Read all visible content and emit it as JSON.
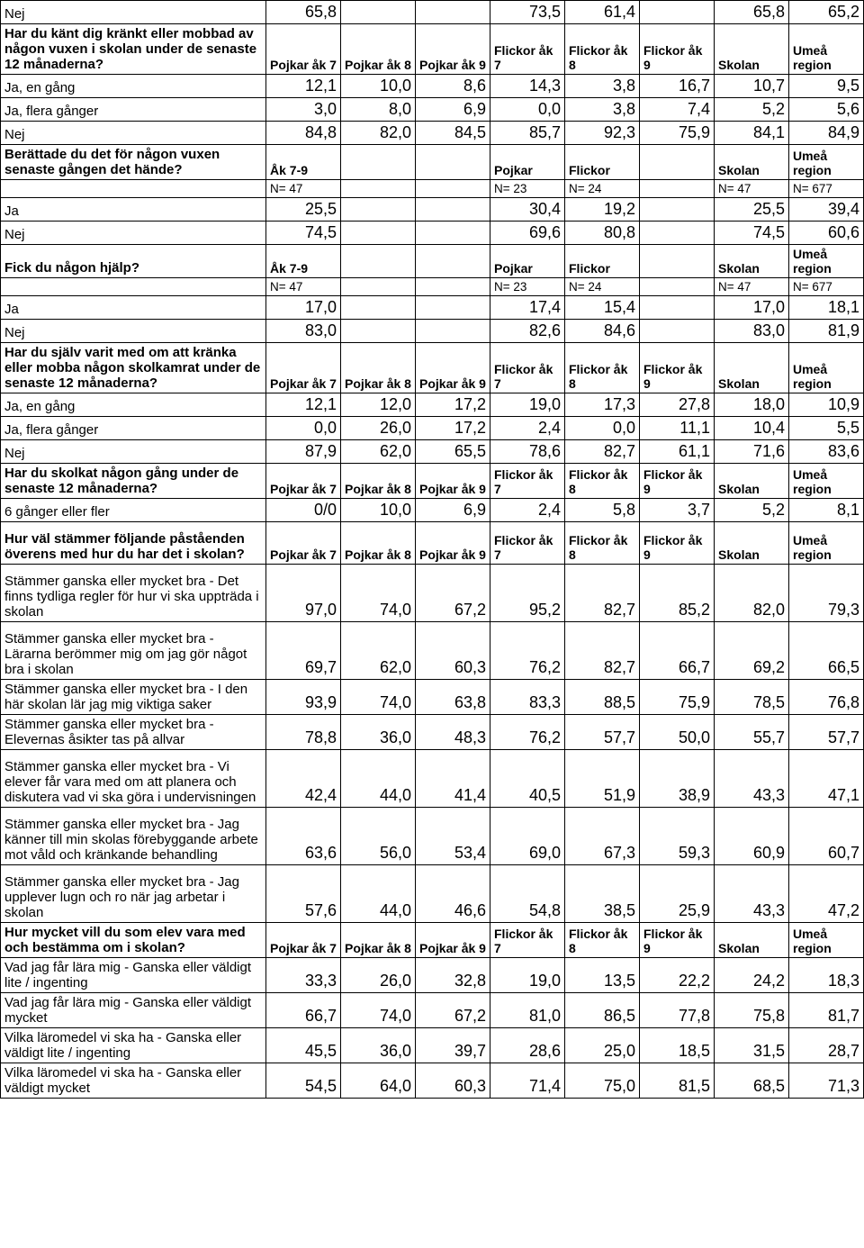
{
  "headers": {
    "p7": "Pojkar åk 7",
    "p8": "Pojkar åk 8",
    "p9": "Pojkar åk 9",
    "f7": "Flickor åk 7",
    "f8": "Flickor åk 8",
    "f9": "Flickor åk 9",
    "sk": "Skolan",
    "um": "Umeå region",
    "ak79": "Åk 7-9",
    "pojkar": "Pojkar",
    "flickor": "Flickor"
  },
  "r_nej1": {
    "label": "Nej",
    "c": [
      "65,8",
      "",
      "",
      "73,5",
      "61,4",
      "",
      "65,8",
      "65,2"
    ]
  },
  "q_krankt": "Har du känt dig kränkt eller mobbad av någon vuxen i skolan under de senaste 12 månaderna?",
  "r_ja_eng": {
    "label": "Ja, en gång",
    "c": [
      "12,1",
      "10,0",
      "8,6",
      "14,3",
      "3,8",
      "16,7",
      "10,7",
      "9,5"
    ]
  },
  "r_ja_fler": {
    "label": "Ja, flera gånger",
    "c": [
      "3,0",
      "8,0",
      "6,9",
      "0,0",
      "3,8",
      "7,4",
      "5,2",
      "5,6"
    ]
  },
  "r_nej2": {
    "label": "Nej",
    "c": [
      "84,8",
      "82,0",
      "84,5",
      "85,7",
      "92,3",
      "75,9",
      "84,1",
      "84,9"
    ]
  },
  "q_berattade": "Berättade du det för någon vuxen senaste gången det hände?",
  "n_row1": {
    "c": [
      "N= 47",
      "",
      "",
      "N= 23",
      "N= 24",
      "",
      "N= 47",
      "N= 677"
    ]
  },
  "r_ja1": {
    "label": "Ja",
    "c": [
      "25,5",
      "",
      "",
      "30,4",
      "19,2",
      "",
      "25,5",
      "39,4"
    ]
  },
  "r_nej3": {
    "label": "Nej",
    "c": [
      "74,5",
      "",
      "",
      "69,6",
      "80,8",
      "",
      "74,5",
      "60,6"
    ]
  },
  "q_hjalp": "Fick du någon hjälp?",
  "n_row2": {
    "c": [
      "N= 47",
      "",
      "",
      "N= 23",
      "N= 24",
      "",
      "N= 47",
      "N= 677"
    ]
  },
  "r_ja2": {
    "label": "Ja",
    "c": [
      "17,0",
      "",
      "",
      "17,4",
      "15,4",
      "",
      "17,0",
      "18,1"
    ]
  },
  "r_nej4": {
    "label": "Nej",
    "c": [
      "83,0",
      "",
      "",
      "82,6",
      "84,6",
      "",
      "83,0",
      "81,9"
    ]
  },
  "q_sjalv": "Har du själv varit med om att kränka eller mobba någon skolkamrat under de senaste 12 månaderna?",
  "r_ja_eng2": {
    "label": "Ja, en gång",
    "c": [
      "12,1",
      "12,0",
      "17,2",
      "19,0",
      "17,3",
      "27,8",
      "18,0",
      "10,9"
    ]
  },
  "r_ja_fler2": {
    "label": "Ja, flera gånger",
    "c": [
      "0,0",
      "26,0",
      "17,2",
      "2,4",
      "0,0",
      "11,1",
      "10,4",
      "5,5"
    ]
  },
  "r_nej5": {
    "label": "Nej",
    "c": [
      "87,9",
      "62,0",
      "65,5",
      "78,6",
      "82,7",
      "61,1",
      "71,6",
      "83,6"
    ]
  },
  "q_skolkat": "Har du skolkat någon gång under de senaste 12 månaderna?",
  "r_6ggr": {
    "label": "6 gånger eller fler",
    "c": [
      "0/0",
      "10,0",
      "6,9",
      "2,4",
      "5,8",
      "3,7",
      "5,2",
      "8,1"
    ]
  },
  "q_stammer": "Hur väl stämmer följande påståenden överens med hur du har det i skolan?",
  "r_regler": {
    "label": "Stämmer ganska eller mycket bra - Det finns tydliga regler för hur vi ska uppträda i skolan",
    "c": [
      "97,0",
      "74,0",
      "67,2",
      "95,2",
      "82,7",
      "85,2",
      "82,0",
      "79,3"
    ]
  },
  "r_larare": {
    "label": "Stämmer ganska eller mycket bra - Lärarna berömmer mig om jag gör något bra i skolan",
    "c": [
      "69,7",
      "62,0",
      "60,3",
      "76,2",
      "82,7",
      "66,7",
      "69,2",
      "66,5"
    ]
  },
  "r_viktiga": {
    "label": "Stämmer ganska eller mycket bra - I den här skolan lär jag mig viktiga saker",
    "c": [
      "93,9",
      "74,0",
      "63,8",
      "83,3",
      "88,5",
      "75,9",
      "78,5",
      "76,8"
    ]
  },
  "r_asikter": {
    "label": "Stämmer ganska eller mycket bra - Elevernas åsikter tas på allvar",
    "c": [
      "78,8",
      "36,0",
      "48,3",
      "76,2",
      "57,7",
      "50,0",
      "55,7",
      "57,7"
    ]
  },
  "r_planera": {
    "label": "Stämmer ganska eller mycket bra - Vi elever får vara med om att planera och diskutera vad vi ska göra i undervisningen",
    "c": [
      "42,4",
      "44,0",
      "41,4",
      "40,5",
      "51,9",
      "38,9",
      "43,3",
      "47,1"
    ]
  },
  "r_forebygg": {
    "label": "Stämmer ganska eller mycket bra - Jag känner till min skolas förebyggande arbete mot våld och kränkande behandling",
    "c": [
      "63,6",
      "56,0",
      "53,4",
      "69,0",
      "67,3",
      "59,3",
      "60,9",
      "60,7"
    ]
  },
  "r_lugn": {
    "label": "Stämmer ganska eller mycket bra - Jag upplever lugn och ro när jag arbetar i skolan",
    "c": [
      "57,6",
      "44,0",
      "46,6",
      "54,8",
      "38,5",
      "25,9",
      "43,3",
      "47,2"
    ]
  },
  "q_bestamma": "Hur mycket vill du som elev vara med och bestämma om i skolan?",
  "r_lara_lite": {
    "label": "Vad jag får lära mig - Ganska eller väldigt lite / ingenting",
    "c": [
      "33,3",
      "26,0",
      "32,8",
      "19,0",
      "13,5",
      "22,2",
      "24,2",
      "18,3"
    ]
  },
  "r_lara_myck": {
    "label": "Vad jag får lära mig - Ganska eller väldigt mycket",
    "c": [
      "66,7",
      "74,0",
      "67,2",
      "81,0",
      "86,5",
      "77,8",
      "75,8",
      "81,7"
    ]
  },
  "r_laro_lite": {
    "label": "Vilka läromedel vi ska ha - Ganska eller väldigt lite / ingenting",
    "c": [
      "45,5",
      "36,0",
      "39,7",
      "28,6",
      "25,0",
      "18,5",
      "31,5",
      "28,7"
    ]
  },
  "r_laro_myck": {
    "label": "Vilka läromedel vi ska ha - Ganska eller väldigt mycket",
    "c": [
      "54,5",
      "64,0",
      "60,3",
      "71,4",
      "75,0",
      "81,5",
      "68,5",
      "71,3"
    ]
  }
}
